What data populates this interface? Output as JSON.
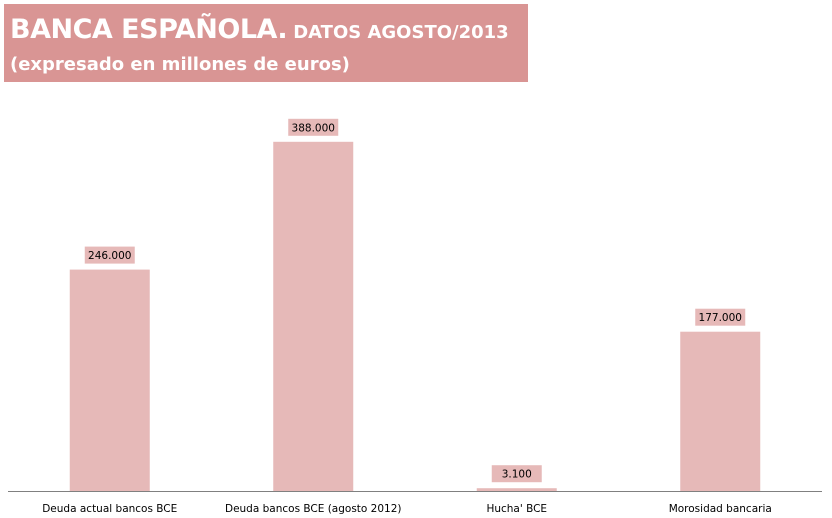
{
  "header": {
    "title": "BANCA ESPAÑOLA.",
    "subtitle": "DATOS AGOSTO/2013",
    "units": "(expresado en millones de euros)"
  },
  "colors": {
    "header_bg": "#d99594",
    "bar": "#e6b9b8",
    "axis": "#808080"
  },
  "chart_data": {
    "type": "bar",
    "title": "BANCA ESPAÑOLA. DATOS AGOSTO/2013",
    "subtitle": "(expresado en millones de euros)",
    "categories": [
      "Deuda actual bancos BCE",
      "Deuda bancos BCE (agosto  2012)",
      "Hucha' BCE",
      "Morosidad bancaria"
    ],
    "values": [
      246000,
      388000,
      3100,
      177000
    ],
    "data_labels": [
      "246.000",
      "388.000",
      "3.100",
      "177.000"
    ],
    "xlabel": "",
    "ylabel": "",
    "ylim": [
      0,
      400000
    ],
    "grid": false,
    "legend": "none"
  }
}
